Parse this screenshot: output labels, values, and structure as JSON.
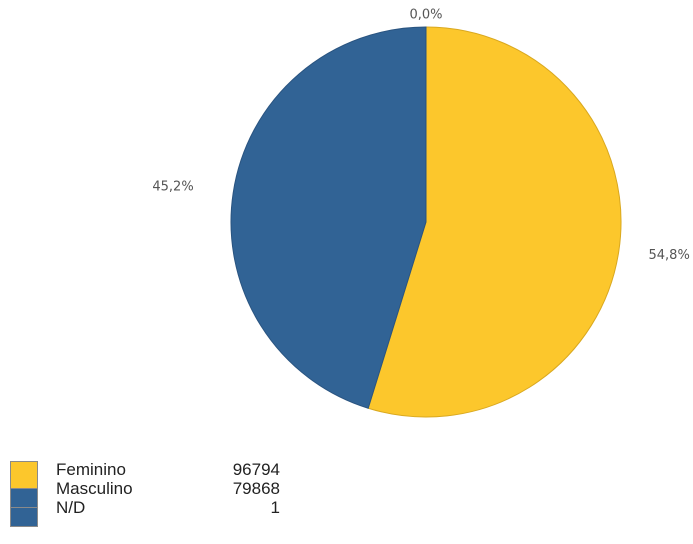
{
  "chart_data": {
    "type": "pie",
    "categories": [
      "Feminino",
      "Masculino",
      "N/D"
    ],
    "values": [
      96794,
      79868,
      1
    ],
    "percent_labels": [
      "54,8%",
      "45,2%",
      "0,0%"
    ],
    "colors": [
      "#fcc72c",
      "#316395",
      "#316395"
    ],
    "legend_position": "bottom-left",
    "start_angle": "top, clockwise"
  }
}
